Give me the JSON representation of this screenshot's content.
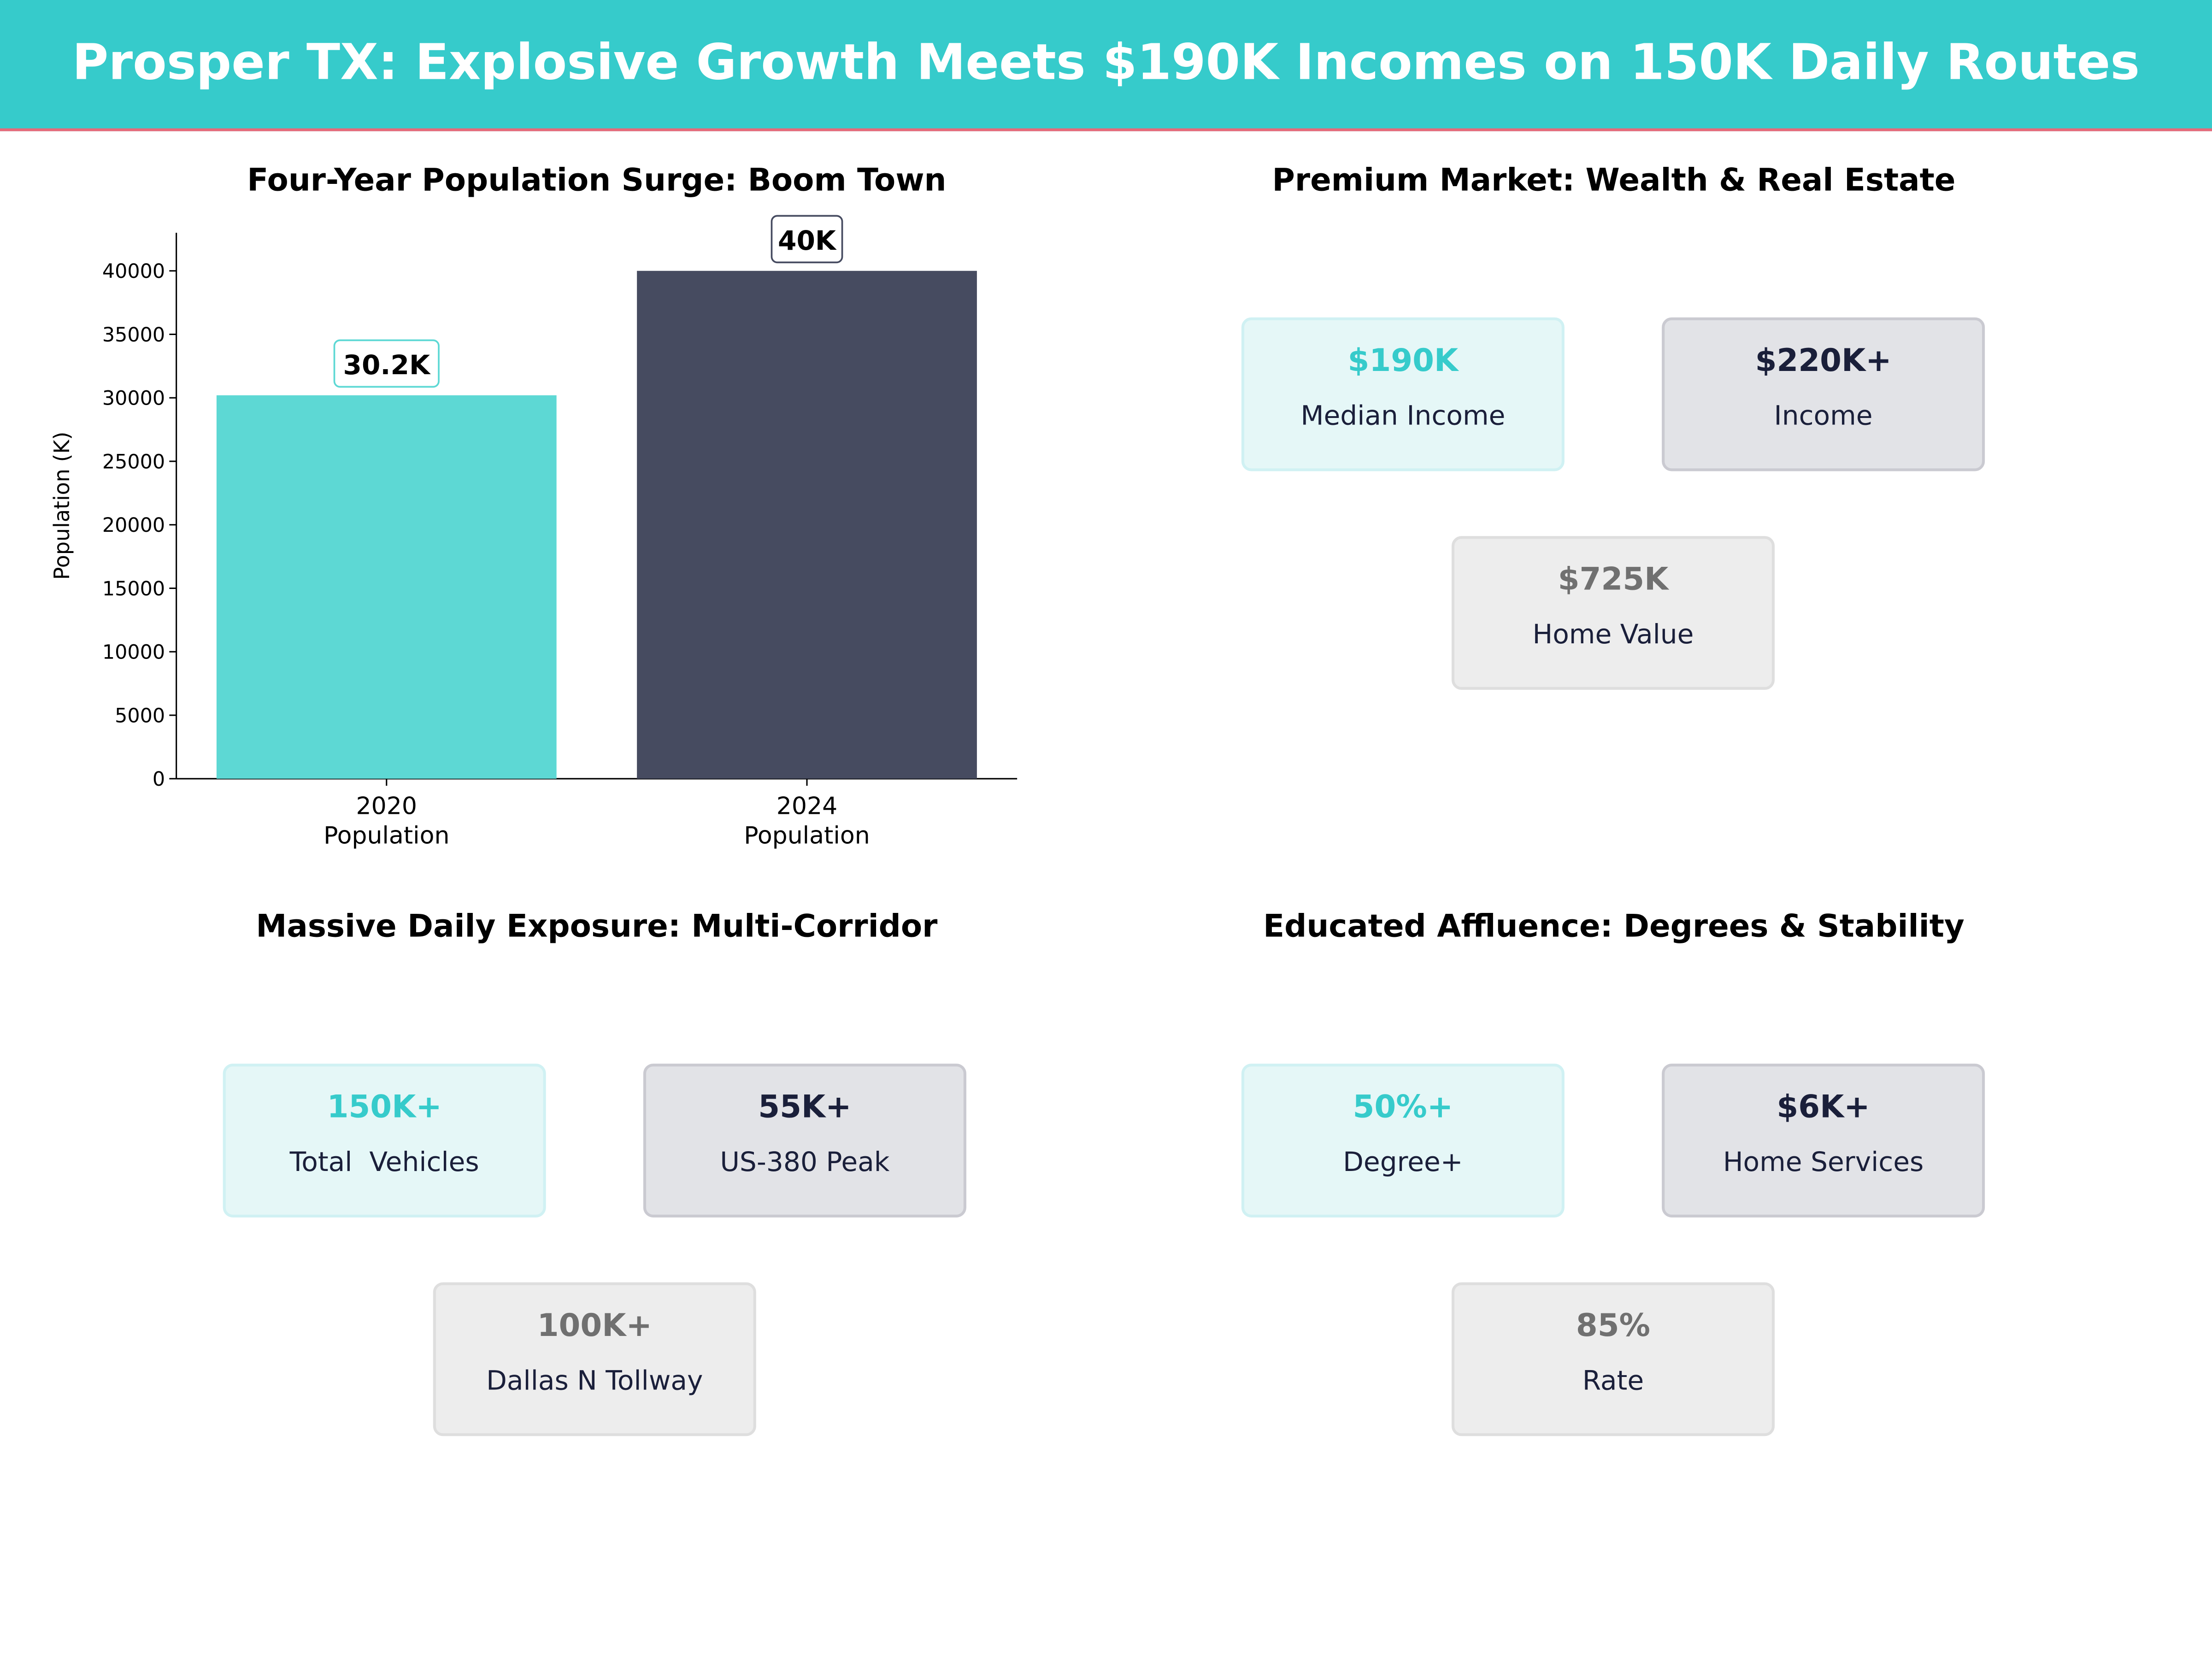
{
  "title": "Prosper TX: Explosive Growth Meets $190K Incomes on 150K Daily Routes",
  "colors": {
    "header": "#36CBCB",
    "accent_line": "#E8697A",
    "teal": "#5DD8D4",
    "navy": "#464B60"
  },
  "chart_data": {
    "type": "bar",
    "title": "Four-Year Population Surge: Boom Town",
    "categories": [
      "2020\nPopulation",
      "2024\nPopulation"
    ],
    "category_lines": [
      [
        "2020",
        "Population"
      ],
      [
        "2024",
        "Population"
      ]
    ],
    "values": [
      30200,
      40000
    ],
    "data_labels": [
      "30.2K",
      "40K"
    ],
    "colors": [
      "#5DD8D4",
      "#464B60"
    ],
    "xlabel": "",
    "ylabel": "Population (K)",
    "ylim": [
      0,
      43000
    ],
    "yticks": [
      0,
      5000,
      10000,
      15000,
      20000,
      25000,
      30000,
      35000,
      40000
    ],
    "grid": false
  },
  "panels": [
    {
      "title": "Premium Market: Wealth & Real Estate",
      "cards": [
        {
          "value": "$190K",
          "label": "Median Income"
        },
        {
          "value": "$220K+",
          "label": "Income"
        },
        {
          "value": "$725K",
          "label": "Home Value"
        }
      ]
    },
    {
      "title": "Massive Daily Exposure: Multi-Corridor",
      "cards": [
        {
          "value": "150K+",
          "label": "Total  Vehicles"
        },
        {
          "value": "55K+",
          "label": "US-380 Peak"
        },
        {
          "value": "100K+",
          "label": "Dallas N Tollway"
        }
      ]
    },
    {
      "title": "Educated Affluence: Degrees & Stability",
      "cards": [
        {
          "value": "50%+",
          "label": "Degree+"
        },
        {
          "value": "$6K+",
          "label": "Home Services"
        },
        {
          "value": "85%",
          "label": "Rate"
        }
      ]
    }
  ]
}
